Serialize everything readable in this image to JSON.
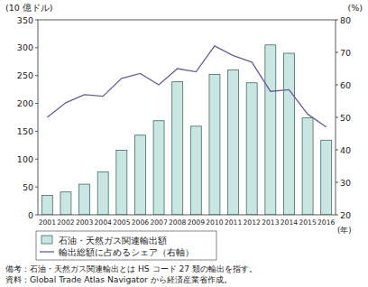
{
  "chart_data": {
    "type": "bar",
    "categories": [
      "2001",
      "2002",
      "2003",
      "2004",
      "2005",
      "2006",
      "2007",
      "2008",
      "2009",
      "2010",
      "2011",
      "2012",
      "2013",
      "2014",
      "2015",
      "2016"
    ],
    "series": [
      {
        "name": "石油・天然ガス関連輸出額",
        "type": "bar",
        "color": "#c9e6e2",
        "values": [
          35,
          41,
          55,
          77,
          116,
          143,
          169,
          239,
          159,
          252,
          260,
          237,
          305,
          290,
          174,
          134
        ]
      },
      {
        "name": "輸出総額に占めるシェア（右軸）",
        "type": "line",
        "color": "#6a5c9c",
        "axis": "y2",
        "values": [
          50,
          54.5,
          57,
          56.5,
          62,
          63.5,
          60,
          65,
          64,
          72,
          69,
          67,
          58,
          58.5,
          51,
          47
        ]
      }
    ],
    "y_label": "(10 億ドル)",
    "y2_label": "(%)",
    "x_label": "(年)",
    "ylim": [
      0,
      350
    ],
    "yticks": [
      0,
      50,
      100,
      150,
      200,
      250,
      300,
      350
    ],
    "y2lim": [
      20,
      80
    ],
    "y2ticks": [
      20,
      30,
      40,
      50,
      60,
      70,
      80
    ],
    "grid": false,
    "legend": "bottom",
    "annotations": [
      "備考：石油・天然ガス関連輸出とは HS コード 27 類の輸出を指す。",
      "資料：Global Trade Atlas Navigator から経済産業省作成。"
    ]
  }
}
